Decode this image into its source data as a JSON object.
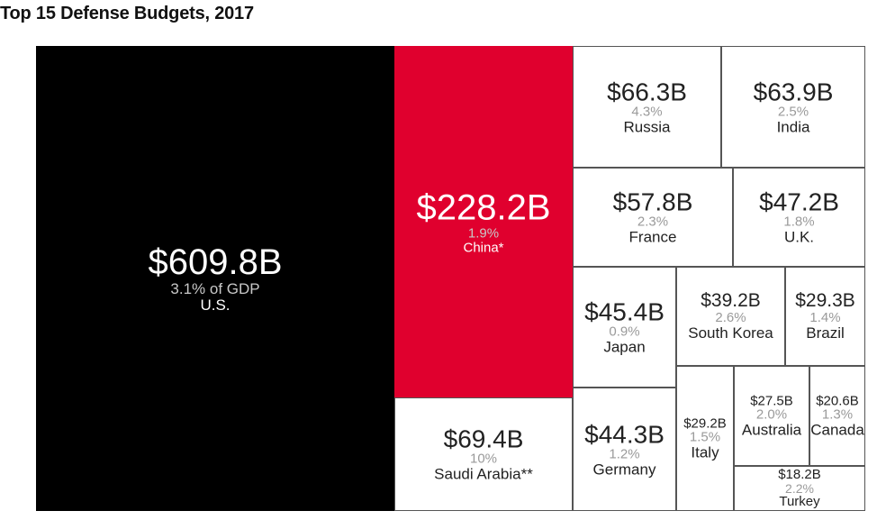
{
  "chart_data": {
    "type": "treemap",
    "title": "Top 15 Defense Budgets, 2017",
    "unit": "USD billions",
    "items": [
      {
        "country": "U.S.",
        "value_label": "$609.8B",
        "value": 609.8,
        "gdp_label": "3.1% of GDP",
        "gdp_pct": 3.1,
        "color": "#000000"
      },
      {
        "country": "China*",
        "value_label": "$228.2B",
        "value": 228.2,
        "gdp_label": "1.9%",
        "gdp_pct": 1.9,
        "color": "#e0002e"
      },
      {
        "country": "Saudi Arabia**",
        "value_label": "$69.4B",
        "value": 69.4,
        "gdp_label": "10%",
        "gdp_pct": 10,
        "color": "#ffffff"
      },
      {
        "country": "Russia",
        "value_label": "$66.3B",
        "value": 66.3,
        "gdp_label": "4.3%",
        "gdp_pct": 4.3,
        "color": "#ffffff"
      },
      {
        "country": "India",
        "value_label": "$63.9B",
        "value": 63.9,
        "gdp_label": "2.5%",
        "gdp_pct": 2.5,
        "color": "#ffffff"
      },
      {
        "country": "France",
        "value_label": "$57.8B",
        "value": 57.8,
        "gdp_label": "2.3%",
        "gdp_pct": 2.3,
        "color": "#ffffff"
      },
      {
        "country": "U.K.",
        "value_label": "$47.2B",
        "value": 47.2,
        "gdp_label": "1.8%",
        "gdp_pct": 1.8,
        "color": "#ffffff"
      },
      {
        "country": "Japan",
        "value_label": "$45.4B",
        "value": 45.4,
        "gdp_label": "0.9%",
        "gdp_pct": 0.9,
        "color": "#ffffff"
      },
      {
        "country": "Germany",
        "value_label": "$44.3B",
        "value": 44.3,
        "gdp_label": "1.2%",
        "gdp_pct": 1.2,
        "color": "#ffffff"
      },
      {
        "country": "South Korea",
        "value_label": "$39.2B",
        "value": 39.2,
        "gdp_label": "2.6%",
        "gdp_pct": 2.6,
        "color": "#ffffff"
      },
      {
        "country": "Brazil",
        "value_label": "$29.3B",
        "value": 29.3,
        "gdp_label": "1.4%",
        "gdp_pct": 1.4,
        "color": "#ffffff"
      },
      {
        "country": "Italy",
        "value_label": "$29.2B",
        "value": 29.2,
        "gdp_label": "1.5%",
        "gdp_pct": 1.5,
        "color": "#ffffff"
      },
      {
        "country": "Australia",
        "value_label": "$27.5B",
        "value": 27.5,
        "gdp_label": "2.0%",
        "gdp_pct": 2.0,
        "color": "#ffffff"
      },
      {
        "country": "Canada",
        "value_label": "$20.6B",
        "value": 20.6,
        "gdp_label": "1.3%",
        "gdp_pct": 1.3,
        "color": "#ffffff"
      },
      {
        "country": "Turkey",
        "value_label": "$18.2B",
        "value": 18.2,
        "gdp_label": "2.2%",
        "gdp_pct": 2.2,
        "color": "#ffffff"
      }
    ]
  }
}
